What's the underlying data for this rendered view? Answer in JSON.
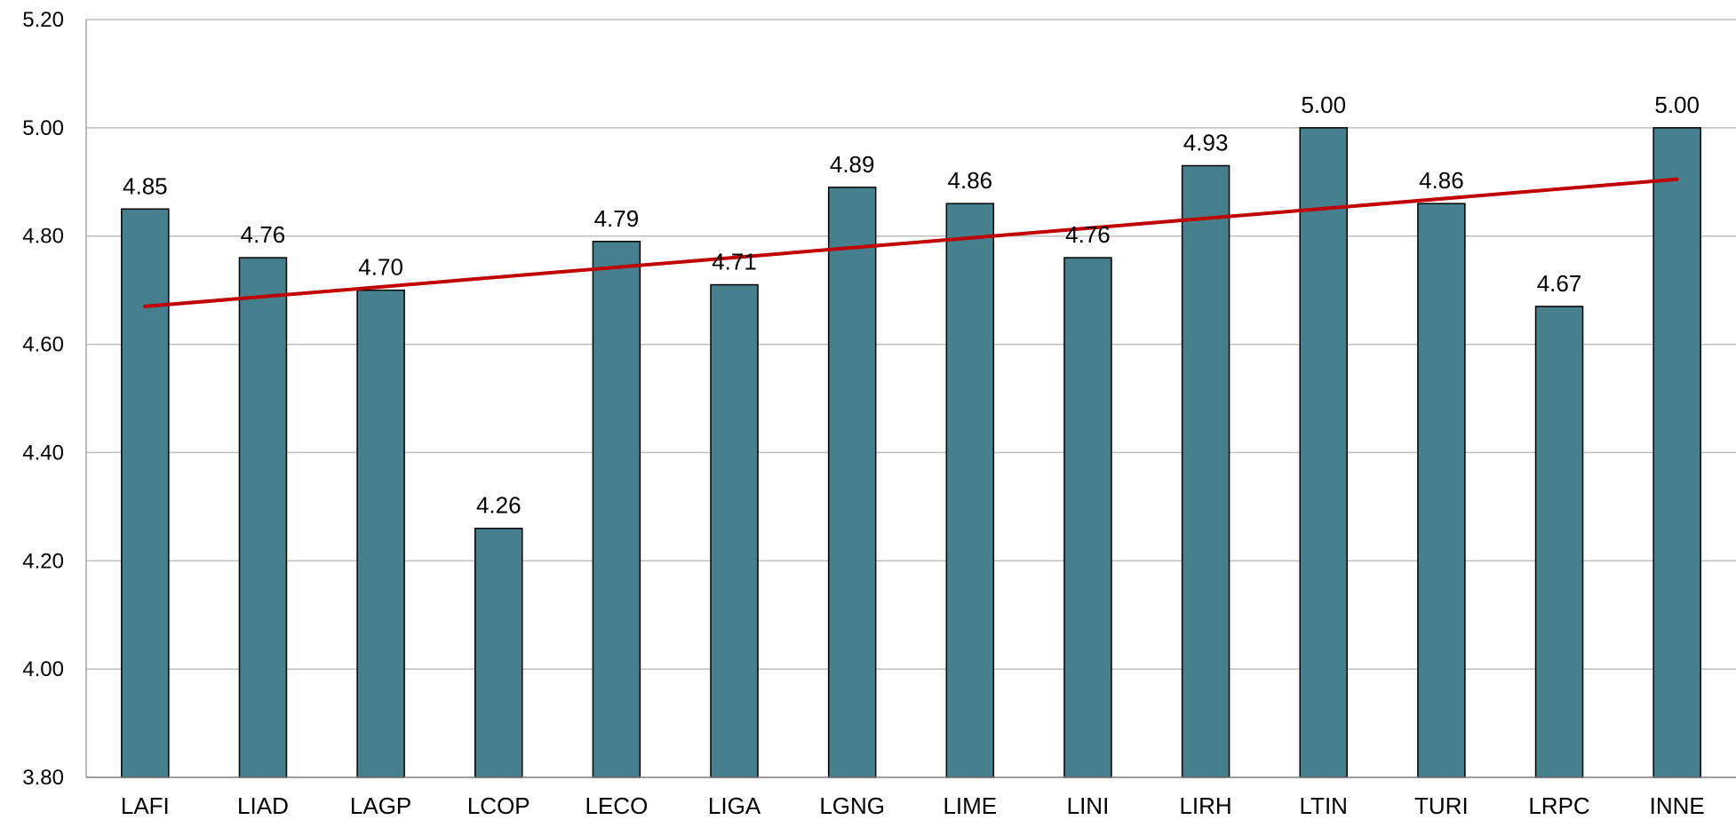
{
  "chart_data": {
    "type": "bar",
    "categories": [
      "LAFI",
      "LIAD",
      "LAGP",
      "LCOP",
      "LECO",
      "LIGA",
      "LGNG",
      "LIME",
      "LINI",
      "LIRH",
      "LTIN",
      "TURI",
      "LRPC",
      "INNE"
    ],
    "values": [
      4.85,
      4.76,
      4.7,
      4.26,
      4.79,
      4.71,
      4.89,
      4.86,
      4.76,
      4.93,
      5.0,
      4.86,
      4.67,
      5.0
    ],
    "data_labels": [
      "4.85",
      "4.76",
      "4.70",
      "4.26",
      "4.79",
      "4.71",
      "4.89",
      "4.86",
      "4.76",
      "4.93",
      "5.00",
      "4.86",
      "4.67",
      "5.00"
    ],
    "title": "",
    "xlabel": "",
    "ylabel": "",
    "ylim": [
      3.8,
      5.2
    ],
    "yticks": [
      "3.80",
      "4.00",
      "4.20",
      "4.40",
      "4.60",
      "4.80",
      "5.00",
      "5.20"
    ],
    "trendline": {
      "type": "linear",
      "start": 4.67,
      "end": 4.905,
      "color": "#C00000"
    },
    "bar_color": "#467F8D",
    "bar_edge_color": "#000000",
    "grid": true,
    "legend": "none"
  }
}
